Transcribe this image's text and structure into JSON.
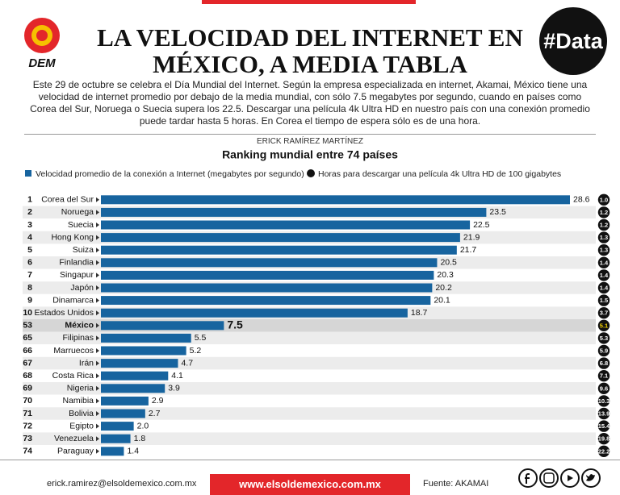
{
  "header": {
    "logo": "DEM",
    "badge": "#Data",
    "title_line1": "LA VELOCIDAD DEL INTERNET EN",
    "title_line2": "MÉXICO, A MEDIA TABLA",
    "description": "Este 29 de octubre se celebra el Día Mundial del Internet. Según la empresa especializada en internet, Akamai, México tiene una velocidad de internet promedio por debajo de la media mundial, con sólo 7.5 megabytes por segundo, cuando en países como Corea del Sur, Noruega o Suecia supera los 22.5. Descargar una película 4k Ultra HD en nuestro país con una conexión promedio puede tardar hasta 5 horas. En Corea el tiempo de espera sólo es de una hora.",
    "author": "ERICK RAMÍREZ MARTÍNEZ"
  },
  "chart_data": {
    "type": "bar",
    "orientation": "horizontal",
    "title": "Ranking mundial entre 74 países",
    "ranks": [
      1,
      2,
      3,
      4,
      5,
      6,
      7,
      8,
      9,
      10,
      53,
      65,
      66,
      67,
      68,
      69,
      70,
      71,
      72,
      73,
      74
    ],
    "categories": [
      "Corea del Sur",
      "Noruega",
      "Suecia",
      "Hong Kong",
      "Suiza",
      "Finlandia",
      "Singapur",
      "Japón",
      "Dinamarca",
      "Estados Unidos",
      "México",
      "Filipinas",
      "Marruecos",
      "Irán",
      "Costa Rica",
      "Nigeria",
      "Namibia",
      "Bolivia",
      "Egipto",
      "Venezuela",
      "Paraguay"
    ],
    "highlight": "México",
    "series": [
      {
        "name": "Velocidad promedio de la conexión a Internet (megabytes por segundo)",
        "color": "#17649f",
        "values": [
          28.6,
          23.5,
          22.5,
          21.9,
          21.7,
          20.5,
          20.3,
          20.2,
          20.1,
          18.7,
          7.5,
          5.5,
          5.2,
          4.7,
          4.1,
          3.9,
          2.9,
          2.7,
          2.0,
          1.8,
          1.4
        ],
        "value_labels": [
          "28.6",
          "23.5",
          "22.5",
          "21.9",
          "21.7",
          "20.5",
          "20.3",
          "20.2",
          "20.1",
          "18.7",
          "7.5",
          "5.5",
          "5.2",
          "4.7",
          "4.1",
          "3.9",
          "2.9",
          "2.7",
          "2.0",
          "1.8",
          "1.4"
        ]
      },
      {
        "name": "Horas para descargar una película 4k Ultra HD de 100 gigabytes",
        "color": "#111111",
        "values": [
          1.0,
          1.2,
          1.2,
          1.3,
          1.3,
          1.4,
          1.4,
          1.4,
          1.5,
          3.7,
          5.1,
          5.3,
          5.9,
          6.8,
          7.1,
          9.6,
          10.3,
          13.9,
          15.4,
          19.8,
          22.2
        ],
        "value_labels": [
          "1.0",
          "1.2",
          "1.2",
          "1.3",
          "1.3",
          "1.4",
          "1.4",
          "1.4",
          "1.5",
          "3.7",
          "5.1",
          "5.3",
          "5.9",
          "6.8",
          "7.1",
          "9.6",
          "10.3",
          "13.9",
          "15.4",
          "19.8",
          "22.2"
        ]
      }
    ]
  },
  "footer": {
    "email": "erick.ramirez@elsoldemexico.com.mx",
    "website": "www.elsoldemexico.com.mx",
    "source": "Fuente: AKAMAI"
  }
}
